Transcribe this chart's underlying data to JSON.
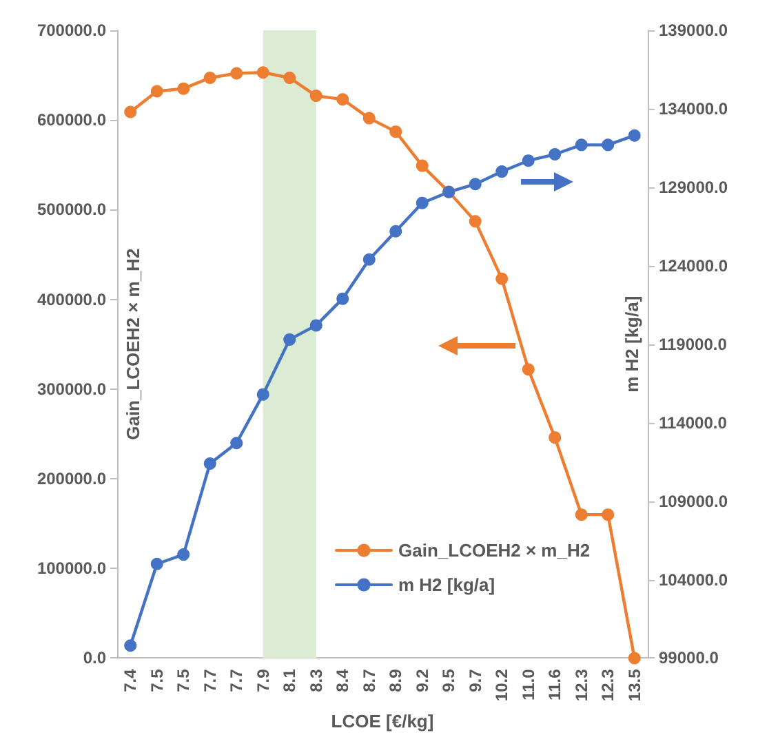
{
  "chart_data": {
    "type": "line",
    "xlabel": "LCOE [€/kg]",
    "ylabel": "Gain_LCOEH2 × m_H2",
    "y2label": "m H2 [kg/a]",
    "categories": [
      "7.4",
      "7.5",
      "7.5",
      "7.7",
      "7.7",
      "7.9",
      "8.1",
      "8.3",
      "8.4",
      "8.7",
      "8.9",
      "9.2",
      "9.5",
      "9.7",
      "10.2",
      "11.0",
      "11.6",
      "12.3",
      "12.3",
      "13.5"
    ],
    "series": [
      {
        "name": "Gain_LCOEH2 × m_H2",
        "color": "#ed7d31",
        "values": [
          609000,
          632000,
          635000,
          647000,
          652000,
          653000,
          647000,
          627000,
          623000,
          602000,
          587000,
          549000,
          520000,
          487000,
          423000,
          322000,
          246000,
          160000,
          160000,
          0
        ]
      },
      {
        "name": "m H2 [kg/a]",
        "color": "#4472c4",
        "axis": "y2",
        "values": [
          99800,
          105000,
          105600,
          111400,
          112700,
          115800,
          119300,
          120200,
          121900,
          124400,
          126200,
          128000,
          128700,
          129200,
          130000,
          130700,
          131100,
          131700,
          131700,
          132300
        ]
      }
    ],
    "ylim": [
      0,
      700000
    ],
    "yticks": [
      {
        "value": 0,
        "label": "0.0"
      },
      {
        "value": 100000,
        "label": "100000.0"
      },
      {
        "value": 200000,
        "label": "200000.0"
      },
      {
        "value": 300000,
        "label": "300000.0"
      },
      {
        "value": 400000,
        "label": "400000.0"
      },
      {
        "value": 500000,
        "label": "500000.0"
      },
      {
        "value": 600000,
        "label": "600000.0"
      },
      {
        "value": 700000,
        "label": "700000.0"
      }
    ],
    "y2lim": [
      99000,
      139000
    ],
    "y2ticks": [
      {
        "value": 99000,
        "label": "99000.0"
      },
      {
        "value": 104000,
        "label": "104000.0"
      },
      {
        "value": 109000,
        "label": "109000.0"
      },
      {
        "value": 114000,
        "label": "114000.0"
      },
      {
        "value": 119000,
        "label": "119000.0"
      },
      {
        "value": 124000,
        "label": "124000.0"
      },
      {
        "value": 129000,
        "label": "129000.0"
      },
      {
        "value": 134000,
        "label": "134000.0"
      },
      {
        "value": 139000,
        "label": "139000.0"
      }
    ],
    "bands": [
      {
        "axis": "x",
        "from": "7.9",
        "to": "8.3",
        "color": "#dcebd3"
      }
    ],
    "legend": "bottom right",
    "marker": "circle",
    "line_style": "solid",
    "grid": false
  }
}
